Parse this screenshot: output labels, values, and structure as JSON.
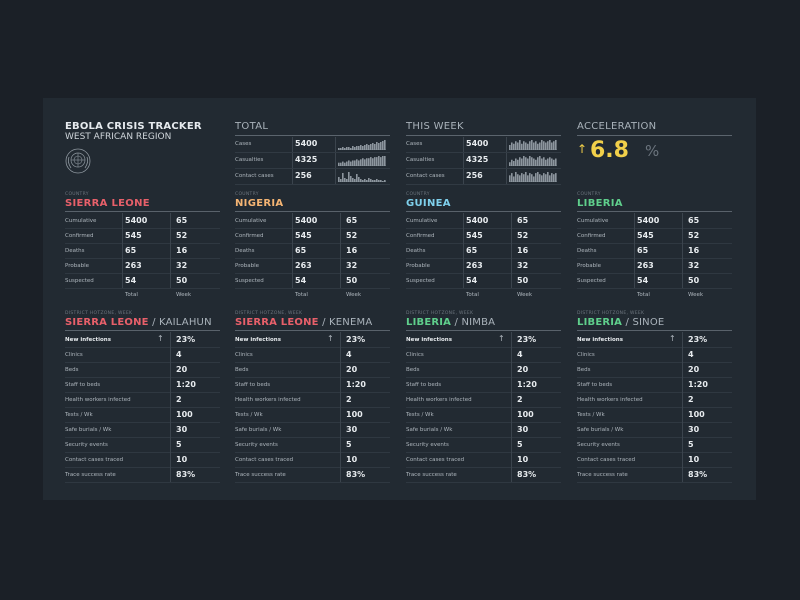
{
  "brand": {
    "title": "EBOLA CRISIS TRACKER",
    "subtitle": "WEST AFRICAN REGION",
    "logo_icon": "un-emblem-icon"
  },
  "headers": {
    "total": "TOTAL",
    "this_week": "THIS WEEK",
    "acceleration": "ACCELERATION"
  },
  "summary_labels": [
    "Cases",
    "Casualties",
    "Contact cases"
  ],
  "total": {
    "values": [
      "5400",
      "4325",
      "256"
    ],
    "sparklines": [
      [
        2,
        2,
        3,
        2,
        3,
        3,
        2,
        4,
        3,
        4,
        4,
        5,
        4,
        5,
        6,
        5,
        6,
        7,
        6,
        8,
        7,
        8,
        9,
        10
      ],
      [
        3,
        3,
        4,
        3,
        4,
        5,
        4,
        5,
        5,
        6,
        5,
        6,
        7,
        6,
        7,
        7,
        8,
        7,
        8,
        8,
        9,
        8,
        9,
        9
      ],
      [
        5,
        3,
        9,
        4,
        3,
        10,
        6,
        4,
        3,
        8,
        5,
        3,
        2,
        3,
        2,
        4,
        3,
        2,
        2,
        3,
        2,
        2,
        1,
        2
      ]
    ]
  },
  "this_week": {
    "values": [
      "5400",
      "4325",
      "256"
    ],
    "sparklines": [
      [
        4,
        6,
        5,
        7,
        6,
        8,
        5,
        7,
        6,
        5,
        7,
        8,
        6,
        7,
        5,
        6,
        8,
        7,
        6,
        7,
        8,
        6,
        7,
        8
      ],
      [
        3,
        5,
        4,
        6,
        5,
        7,
        6,
        8,
        7,
        6,
        8,
        7,
        6,
        5,
        7,
        8,
        6,
        7,
        5,
        6,
        7,
        6,
        5,
        6
      ],
      [
        6,
        8,
        5,
        9,
        7,
        6,
        8,
        7,
        9,
        6,
        8,
        7,
        5,
        8,
        9,
        7,
        6,
        8,
        7,
        9,
        6,
        8,
        7,
        8
      ]
    ]
  },
  "acceleration": {
    "value": "6.8",
    "unit": "%",
    "arrow_icon": "arrow-up-icon"
  },
  "country_caption": "COUNTRY",
  "country_row_labels": [
    "Cumulative",
    "Confirmed",
    "Deaths",
    "Probable",
    "Suspected"
  ],
  "country_footer": {
    "total": "Total",
    "week": "Week"
  },
  "countries": [
    {
      "name": "SIERRA LEONE",
      "color": "#e8606a",
      "total": [
        "5400",
        "545",
        "65",
        "263",
        "54"
      ],
      "week": [
        "65",
        "52",
        "16",
        "32",
        "50"
      ]
    },
    {
      "name": "NIGERIA",
      "color": "#f4b473",
      "total": [
        "5400",
        "545",
        "65",
        "263",
        "54"
      ],
      "week": [
        "65",
        "52",
        "16",
        "32",
        "50"
      ]
    },
    {
      "name": "GUINEA",
      "color": "#7fd0ec",
      "total": [
        "5400",
        "545",
        "65",
        "263",
        "54"
      ],
      "week": [
        "65",
        "52",
        "16",
        "32",
        "50"
      ]
    },
    {
      "name": "LIBERIA",
      "color": "#5fcf8c",
      "total": [
        "5400",
        "545",
        "65",
        "263",
        "54"
      ],
      "week": [
        "65",
        "52",
        "16",
        "32",
        "50"
      ]
    }
  ],
  "hotzone_caption": "DISTRICT HOTZONE, WEEK",
  "hotzone_row_labels": [
    "New infections",
    "Clinics",
    "Beds",
    "Staff to beds",
    "Health workers infected",
    "Tests / Wk",
    "Safe burials / Wk",
    "Security events",
    "Contact cases traced",
    "Trace success rate"
  ],
  "hotzones": [
    {
      "country": "SIERRA LEONE",
      "district": "KAILAHUN",
      "color": "#e8606a",
      "values": [
        "23%",
        "4",
        "20",
        "1:20",
        "2",
        "100",
        "30",
        "5",
        "10",
        "83%"
      ]
    },
    {
      "country": "SIERRA LEONE",
      "district": "KENEMA",
      "color": "#e8606a",
      "values": [
        "23%",
        "4",
        "20",
        "1:20",
        "2",
        "100",
        "30",
        "5",
        "10",
        "83%"
      ]
    },
    {
      "country": "LIBERIA",
      "district": "NIMBA",
      "color": "#5fcf8c",
      "values": [
        "23%",
        "4",
        "20",
        "1:20",
        "2",
        "100",
        "30",
        "5",
        "10",
        "83%"
      ]
    },
    {
      "country": "LIBERIA",
      "district": "SINOE",
      "color": "#5fcf8c",
      "values": [
        "23%",
        "4",
        "20",
        "1:20",
        "2",
        "100",
        "30",
        "5",
        "10",
        "83%"
      ]
    }
  ],
  "up_arrow_icon": "arrow-up-icon"
}
